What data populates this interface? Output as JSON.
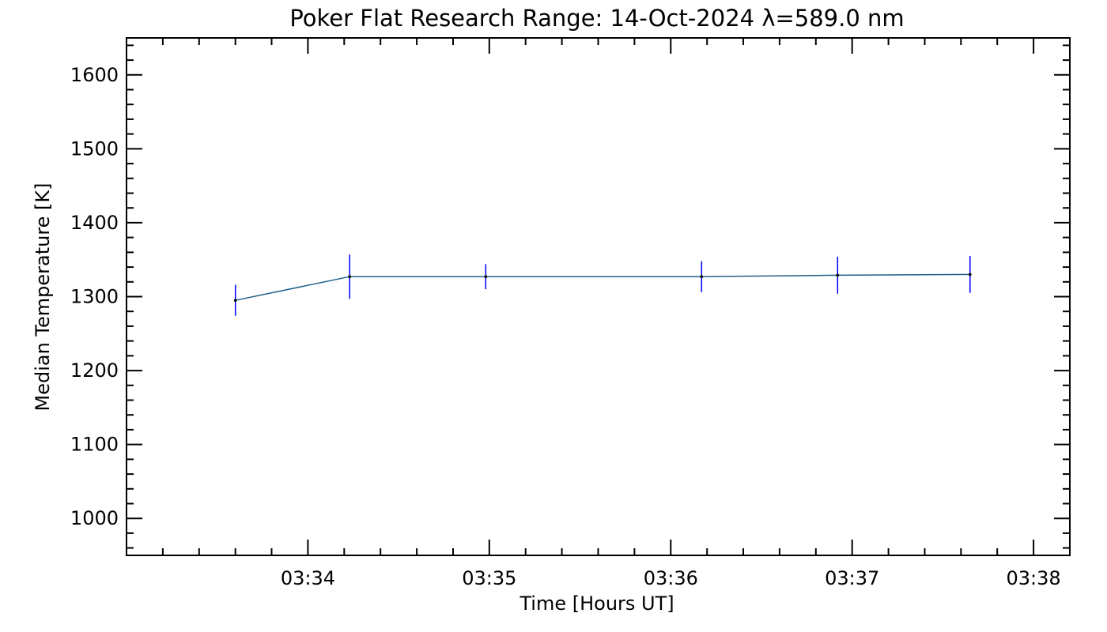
{
  "chart_data": {
    "type": "line",
    "title": "Poker Flat Research Range: 14-Oct-2024 λ=589.0 nm",
    "xlabel": "Time [Hours UT]",
    "ylabel": "Median Temperature [K]",
    "x_unit": "minutes after 03:00 UT",
    "xlim": [
      33.0,
      38.2
    ],
    "ylim": [
      950,
      1650
    ],
    "x_ticks": [
      {
        "value": 34,
        "label": "03:34"
      },
      {
        "value": 35,
        "label": "03:35"
      },
      {
        "value": 36,
        "label": "03:36"
      },
      {
        "value": 37,
        "label": "03:37"
      },
      {
        "value": 38,
        "label": "03:38"
      }
    ],
    "x_minor_step": 0.2,
    "y_ticks": [
      1000,
      1100,
      1200,
      1300,
      1400,
      1500,
      1600
    ],
    "y_minor_step": 20,
    "grid": false,
    "line_color": "#1f5f8b",
    "errorbar_color": "#0000ff",
    "marker_color": "#000000",
    "series": [
      {
        "name": "Median Temperature",
        "x": [
          33.6,
          34.23,
          34.98,
          36.17,
          36.92,
          37.65
        ],
        "y": [
          1295,
          1327,
          1327,
          1327,
          1329,
          1330
        ],
        "err": [
          21,
          30,
          17,
          21,
          25,
          25
        ]
      }
    ]
  }
}
